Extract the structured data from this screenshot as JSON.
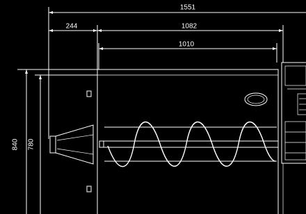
{
  "dimensions": [
    "1551",
    "244",
    "1082",
    "1010",
    "840",
    "780"
  ]
}
